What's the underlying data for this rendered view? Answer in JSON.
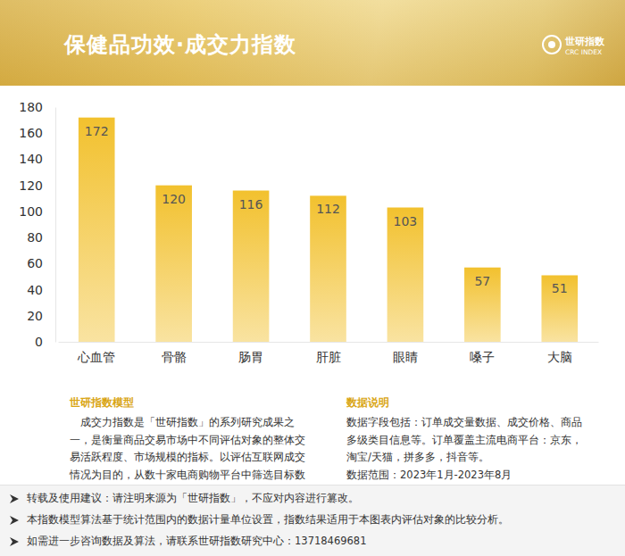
{
  "header": {
    "title": "保健品功效·成交力指数",
    "logo": [
      "世研指数",
      "CRC INDEX"
    ]
  },
  "chart_data": {
    "type": "bar",
    "categories": [
      "心血管",
      "骨骼",
      "肠胃",
      "肝脏",
      "眼睛",
      "嗓子",
      "大脑"
    ],
    "values": [
      172,
      120,
      116,
      112,
      103,
      57,
      51
    ],
    "color": "#f2c12e",
    "ylim": [
      0,
      180
    ],
    "yticks": [
      0,
      20,
      40,
      60,
      80,
      100,
      120,
      140,
      160,
      180
    ],
    "grid": false,
    "data_labels": true
  },
  "notes": [
    {
      "title": "世研指数模型",
      "paragraphs": [
        "成交力指数是「世研指数」的系列研究成果之一，是衡量商品交易市场中不同评估对象的整体交易活跃程度、市场规模的指标。以评估互联网成交情况为目的，从数十家电商购物平台中筛选目标数据，构成有效分析样本。"
      ]
    },
    {
      "title": "数据说明",
      "paragraphs": [
        "数据字段包括：订单成交量数据、成交价格、商品多级类目信息等。订单覆盖主流电商平台：京东，淘宝/天猫，拼多多，抖音等。",
        "数据范围：2023年1月-2023年8月"
      ]
    }
  ],
  "footer": [
    "转载及使用建议：请注明来源为「世研指数」，不应对内容进行篡改。",
    "本指数模型算法基于统计范围内的数据计量单位设置，指数结果适用于本图表内评估对象的比较分析。",
    "如需进一步咨询数据及算法，请联系世研指数研究中心：13718469681"
  ]
}
